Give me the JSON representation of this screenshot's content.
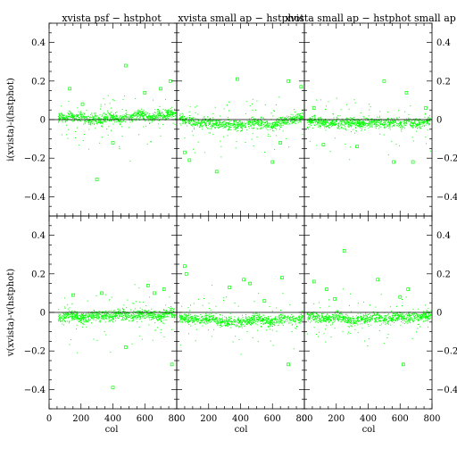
{
  "chart_data": {
    "type": "scatter",
    "grid": "off",
    "legend": "none",
    "point_color": "#00ff00",
    "x_range": [
      0,
      800
    ],
    "y_range": [
      -0.5,
      0.5
    ],
    "x_ticks": [
      0,
      200,
      400,
      600,
      800
    ],
    "y_ticks": [
      -0.4,
      -0.2,
      0,
      0.2,
      0.4
    ],
    "xlabel": "col",
    "row_ylabels": [
      "i(xvista)-i(hstphot)",
      "v(xvista)-v(hstphot)"
    ],
    "column_titles": [
      "xvista psf − hstphot",
      "xvista small ap − hstphot",
      "xvista small ap − hstphot small ap"
    ],
    "panels": [
      {
        "row": 0,
        "col": 0,
        "series": [
          {
            "x": [
              55,
              80,
              100,
              130,
              160,
              200,
              240,
              280,
              320,
              360,
              400,
              440,
              480,
              520,
              560,
              600,
              640,
              680,
              720,
              760,
              790
            ],
            "y": [
              0.01,
              0.02,
              0.0,
              0.03,
              0.01,
              0.02,
              0.0,
              0.01,
              -0.01,
              0.02,
              0.01,
              0.0,
              0.02,
              0.01,
              0.03,
              0.02,
              0.01,
              0.03,
              0.02,
              0.04,
              0.03
            ]
          }
        ],
        "outliers": [
          [
            130,
            0.16
          ],
          [
            210,
            0.08
          ],
          [
            400,
            -0.12
          ],
          [
            600,
            0.14
          ],
          [
            700,
            0.16
          ],
          [
            760,
            0.2
          ],
          [
            300,
            -0.31
          ],
          [
            480,
            0.28
          ]
        ]
      },
      {
        "row": 0,
        "col": 1,
        "series": [
          {
            "x": [
              15,
              50,
              100,
              150,
              200,
              250,
              300,
              350,
              400,
              450,
              500,
              550,
              600,
              650,
              700,
              750,
              790
            ],
            "y": [
              0.01,
              0.0,
              -0.01,
              -0.02,
              -0.01,
              -0.02,
              -0.03,
              -0.02,
              -0.03,
              -0.02,
              -0.01,
              -0.02,
              -0.03,
              -0.01,
              0.0,
              0.01,
              0.02
            ]
          }
        ],
        "outliers": [
          [
            50,
            -0.17
          ],
          [
            80,
            -0.21
          ],
          [
            250,
            -0.27
          ],
          [
            380,
            0.21
          ],
          [
            600,
            -0.22
          ],
          [
            650,
            -0.12
          ],
          [
            700,
            0.2
          ],
          [
            780,
            0.17
          ]
        ]
      },
      {
        "row": 0,
        "col": 2,
        "series": [
          {
            "x": [
              15,
              50,
              100,
              150,
              200,
              250,
              300,
              350,
              400,
              450,
              500,
              550,
              600,
              650,
              700,
              750,
              790
            ],
            "y": [
              -0.01,
              0.0,
              -0.01,
              -0.02,
              -0.01,
              -0.02,
              -0.01,
              -0.02,
              -0.02,
              -0.01,
              -0.02,
              -0.01,
              -0.02,
              -0.01,
              -0.02,
              -0.01,
              0.0
            ]
          }
        ],
        "outliers": [
          [
            60,
            0.06
          ],
          [
            120,
            -0.13
          ],
          [
            330,
            -0.14
          ],
          [
            500,
            0.2
          ],
          [
            640,
            0.14
          ],
          [
            680,
            -0.22
          ],
          [
            560,
            -0.22
          ],
          [
            760,
            0.06
          ]
        ]
      },
      {
        "row": 1,
        "col": 0,
        "series": [
          {
            "x": [
              55,
              80,
              100,
              130,
              160,
              200,
              240,
              280,
              320,
              360,
              400,
              440,
              480,
              520,
              560,
              600,
              640,
              680,
              720,
              760,
              790
            ],
            "y": [
              -0.02,
              -0.03,
              -0.02,
              -0.01,
              -0.02,
              -0.03,
              -0.02,
              -0.01,
              -0.02,
              -0.01,
              -0.02,
              0.0,
              -0.01,
              -0.02,
              -0.01,
              0.0,
              -0.01,
              -0.02,
              -0.01,
              0.0,
              -0.01
            ]
          }
        ],
        "outliers": [
          [
            150,
            0.09
          ],
          [
            330,
            0.1
          ],
          [
            480,
            -0.18
          ],
          [
            620,
            0.14
          ],
          [
            660,
            0.1
          ],
          [
            720,
            0.12
          ],
          [
            770,
            -0.27
          ],
          [
            400,
            -0.39
          ]
        ]
      },
      {
        "row": 1,
        "col": 1,
        "series": [
          {
            "x": [
              15,
              50,
              100,
              150,
              200,
              250,
              300,
              350,
              400,
              450,
              500,
              550,
              600,
              650,
              700,
              750,
              790
            ],
            "y": [
              -0.02,
              -0.03,
              -0.03,
              -0.04,
              -0.03,
              -0.04,
              -0.05,
              -0.04,
              -0.05,
              -0.04,
              -0.03,
              -0.04,
              -0.05,
              -0.03,
              -0.03,
              -0.04,
              -0.02
            ]
          }
        ],
        "outliers": [
          [
            60,
            0.2
          ],
          [
            50,
            0.24
          ],
          [
            330,
            0.13
          ],
          [
            420,
            0.17
          ],
          [
            460,
            0.15
          ],
          [
            550,
            0.06
          ],
          [
            660,
            0.18
          ],
          [
            700,
            -0.27
          ]
        ]
      },
      {
        "row": 1,
        "col": 2,
        "series": [
          {
            "x": [
              15,
              50,
              100,
              150,
              200,
              250,
              300,
              350,
              400,
              450,
              500,
              550,
              600,
              650,
              700,
              750,
              790
            ],
            "y": [
              -0.02,
              -0.02,
              -0.03,
              -0.03,
              -0.02,
              -0.03,
              -0.04,
              -0.03,
              -0.03,
              -0.02,
              -0.03,
              -0.03,
              -0.02,
              -0.03,
              -0.02,
              -0.02,
              -0.01
            ]
          }
        ],
        "outliers": [
          [
            60,
            0.16
          ],
          [
            140,
            0.12
          ],
          [
            190,
            0.07
          ],
          [
            250,
            0.32
          ],
          [
            460,
            0.17
          ],
          [
            600,
            0.08
          ],
          [
            650,
            0.12
          ],
          [
            620,
            -0.27
          ]
        ]
      }
    ]
  }
}
